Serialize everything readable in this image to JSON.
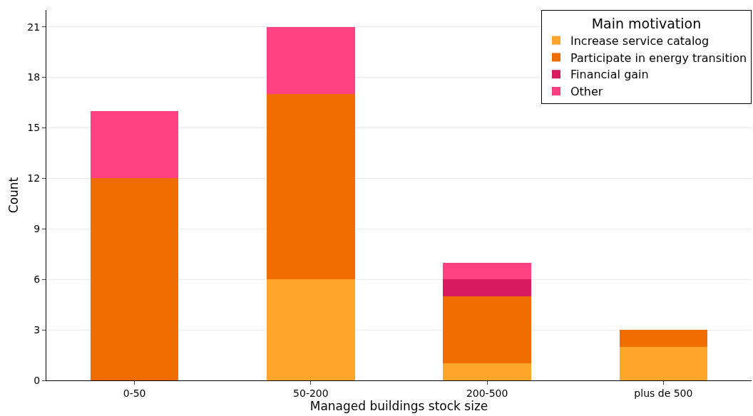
{
  "chart_data": {
    "type": "bar",
    "stacked": true,
    "xlabel": "Managed buildings stock size",
    "ylabel": "Count",
    "legend_title": "Main motivation",
    "categories": [
      "0-50",
      "50-200",
      "200-500",
      "plus de 500"
    ],
    "series": [
      {
        "name": "Increase service catalog",
        "color": "#ffa52a",
        "values": [
          0,
          6,
          1,
          2
        ]
      },
      {
        "name": "Participate in energy transition",
        "color": "#ee6c00",
        "values": [
          12,
          11,
          4,
          1
        ]
      },
      {
        "name": "Financial gain",
        "color": "#d81b60",
        "values": [
          0,
          0,
          1,
          0
        ]
      },
      {
        "name": "Other",
        "color": "#ff4081",
        "values": [
          4,
          4,
          1,
          0
        ]
      }
    ],
    "ylim": [
      0,
      22
    ],
    "yticks": [
      0,
      3,
      6,
      9,
      12,
      15,
      18,
      21
    ],
    "grid": "y",
    "legend": "top right"
  }
}
